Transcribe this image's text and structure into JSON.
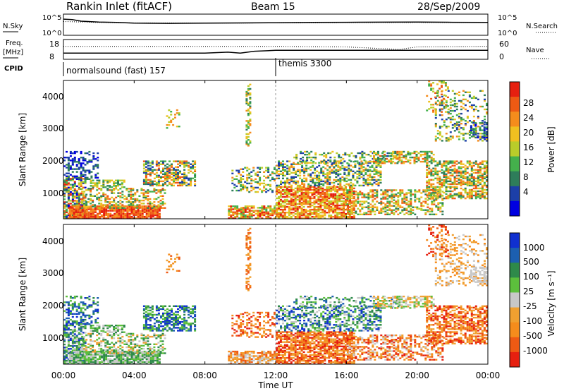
{
  "header": {
    "station_title": "Rankin Inlet (fitACF)",
    "beam_label": "Beam 15",
    "date_label": "28/Sep/2009"
  },
  "left_labels": {
    "nsky": "N.Sky",
    "freq": "Freq.",
    "freq_unit": "[MHz]",
    "cpid": "CPID"
  },
  "right_labels": {
    "nsearch": "N.Search",
    "nave": "Nave"
  },
  "cpid_segments": [
    {
      "label": "normalsound (fast) 157",
      "start_hour": 0
    },
    {
      "label": "themis 3300",
      "start_hour": 12
    }
  ],
  "colors": {
    "power": [
      "#0000e0",
      "#1c3fa8",
      "#2e7d5a",
      "#44b04c",
      "#b9cc2a",
      "#f0c020",
      "#f58c1c",
      "#ee5a14",
      "#e62010"
    ],
    "velocity": [
      "#e62010",
      "#ee5a14",
      "#f58c1c",
      "#f0a030",
      "#c8c8c8",
      "#5cbf3c",
      "#2e8a4a",
      "#1c5fb0",
      "#1030d0"
    ]
  },
  "chart_data": [
    {
      "type": "line",
      "name": "noise",
      "ylabel_left": "N.Sky",
      "ylabel_right": "N.Search",
      "y_ticks": [
        "10^5",
        "10^0"
      ],
      "y_scale": "log",
      "ylim": [
        1,
        100000
      ],
      "series": [
        {
          "name": "N.Sky",
          "x": [
            0,
            0.5,
            1,
            2,
            3,
            4,
            6,
            8,
            10,
            12,
            14,
            16,
            18,
            20,
            22,
            24
          ],
          "y": [
            8000,
            6000,
            2500,
            1500,
            1200,
            800,
            700,
            800,
            900,
            1000,
            1200,
            1300,
            1400,
            1500,
            1300,
            1200
          ]
        },
        {
          "name": "N.Search",
          "x": [
            0,
            2,
            4,
            8,
            12,
            16,
            20,
            24
          ],
          "y": [
            2000,
            1200,
            900,
            800,
            900,
            1100,
            1200,
            1100
          ]
        }
      ]
    },
    {
      "type": "line",
      "name": "frequency",
      "ylabel_left": "Freq. [MHz]",
      "ylabel_right": "Nave",
      "y_ticks_left": [
        "18",
        "8"
      ],
      "y_ticks_right": [
        "60",
        "0"
      ],
      "ylim": [
        8,
        18
      ],
      "series": [
        {
          "name": "Freq.",
          "x": [
            0,
            2,
            4,
            6,
            8,
            9.3,
            10,
            10.8,
            12,
            16,
            20,
            24
          ],
          "y": [
            11,
            11,
            11,
            11,
            11,
            11.5,
            11,
            12,
            12.5,
            12.5,
            12.5,
            12.5
          ]
        },
        {
          "name": "Nave",
          "x": [
            0,
            4,
            8,
            12,
            16,
            19,
            20,
            24
          ],
          "y": [
            40,
            40,
            40,
            40,
            38,
            30,
            38,
            40
          ]
        }
      ]
    },
    {
      "type": "heatmap",
      "name": "power",
      "ylabel": "Slant Range [km]",
      "colorbar_label": "Power [dB]",
      "colorbar_ticks": [
        "4",
        "8",
        "12",
        "16",
        "20",
        "24",
        "28"
      ],
      "y_ticks": [
        "1000",
        "2000",
        "3000",
        "4000"
      ],
      "ylim": [
        180,
        4500
      ],
      "xlim": [
        0,
        24
      ]
    },
    {
      "type": "heatmap",
      "name": "velocity",
      "ylabel": "Slant Range [km]",
      "colorbar_label": "Velocity [m s⁻¹]",
      "colorbar_ticks": [
        "-1000",
        "-500",
        "-100",
        "-25",
        "25",
        "100",
        "500",
        "1000"
      ],
      "y_ticks": [
        "1000",
        "2000",
        "3000",
        "4000"
      ],
      "ylim": [
        180,
        4500
      ],
      "xlim": [
        0,
        24
      ],
      "xlabel": "Time UT",
      "x_ticks": [
        "00:00",
        "04:00",
        "08:00",
        "12:00",
        "16:00",
        "20:00",
        "00:00"
      ]
    }
  ]
}
